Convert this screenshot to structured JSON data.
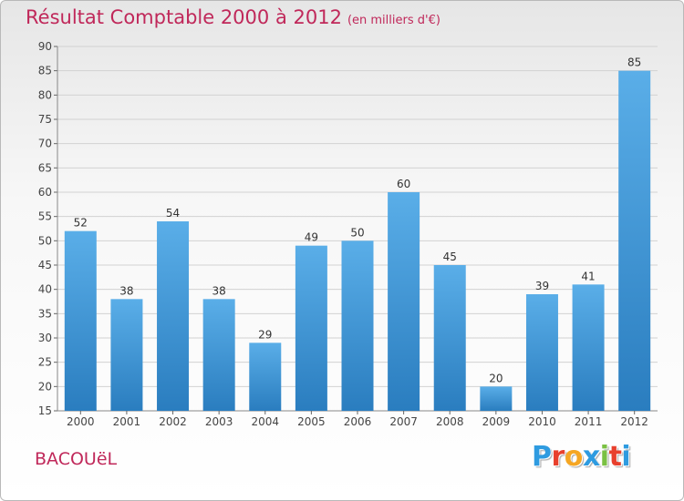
{
  "header": {
    "title": "Résultat Comptable 2000 à 2012",
    "subtitle": "(en milliers d'€)"
  },
  "footer": {
    "place_name": "BACOUëL",
    "brand": [
      "P",
      "r",
      "o",
      "x",
      "i",
      "t",
      "i"
    ],
    "brand_colors": [
      "#2e9be0",
      "#e8402d",
      "#f5a623",
      "#2e9be0",
      "#7ac143",
      "#e8402d",
      "#2e9be0"
    ]
  },
  "chart_data": {
    "type": "bar",
    "title": "Résultat Comptable 2000 à 2012",
    "subtitle": "(en milliers d'€)",
    "categories": [
      "2000",
      "2001",
      "2002",
      "2003",
      "2004",
      "2005",
      "2006",
      "2007",
      "2008",
      "2009",
      "2010",
      "2011",
      "2012"
    ],
    "values": [
      52,
      38,
      54,
      38,
      29,
      49,
      50,
      60,
      45,
      20,
      39,
      41,
      85
    ],
    "ylim": [
      15,
      90
    ],
    "yticks": [
      15,
      20,
      25,
      30,
      35,
      40,
      45,
      50,
      55,
      60,
      65,
      70,
      75,
      80,
      85,
      90
    ],
    "grid": true,
    "xlabel": "",
    "ylabel": "",
    "bar_color_top": "#5aaee8",
    "bar_color_bottom": "#2a7dbf",
    "grid_color": "#d2d2d2"
  }
}
